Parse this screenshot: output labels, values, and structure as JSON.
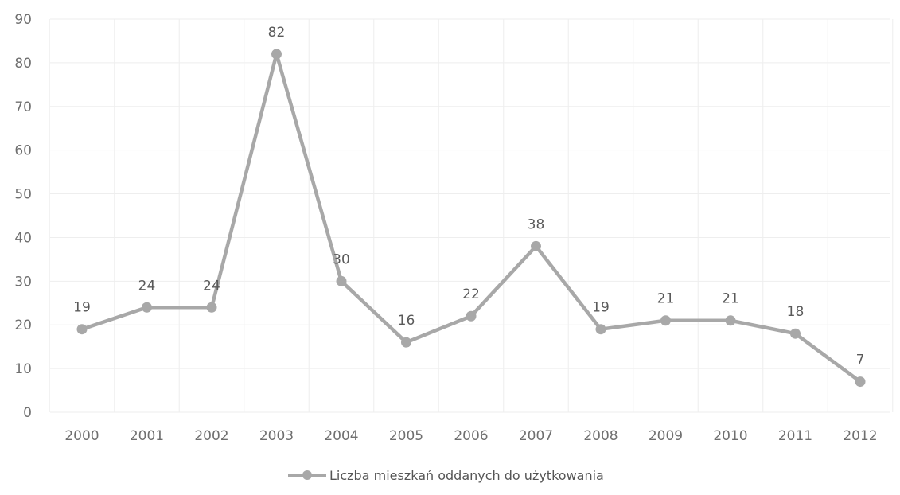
{
  "chart_data": {
    "type": "line",
    "categories": [
      "2000",
      "2001",
      "2002",
      "2003",
      "2004",
      "2005",
      "2006",
      "2007",
      "2008",
      "2009",
      "2010",
      "2011",
      "2012"
    ],
    "series": [
      {
        "name": "Liczba mieszkań oddanych do użytkowania",
        "values": [
          19,
          24,
          24,
          82,
          30,
          16,
          22,
          38,
          19,
          21,
          21,
          18,
          7
        ],
        "data_labels": [
          "19",
          "24",
          "24",
          "82",
          "30",
          "16",
          "22",
          "38",
          "19",
          "21",
          "21",
          "18",
          "7"
        ],
        "color": "#a8a8a8"
      }
    ],
    "ylim": [
      0,
      90
    ],
    "y_ticks": [
      "0",
      "10",
      "20",
      "30",
      "40",
      "50",
      "60",
      "70",
      "80",
      "90"
    ],
    "grid": true,
    "legend_position": "bottom"
  }
}
